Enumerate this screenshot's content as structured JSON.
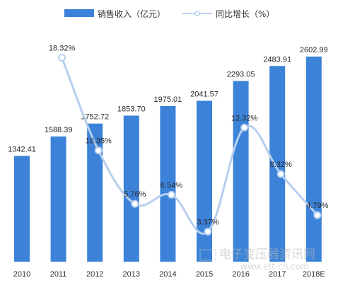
{
  "chart_data": {
    "type": "bar",
    "categories": [
      "2010",
      "2011",
      "2012",
      "2013",
      "2014",
      "2015",
      "2016",
      "2017",
      "2018E"
    ],
    "series": [
      {
        "name": "销售收入（亿元）",
        "kind": "bar",
        "values": [
          1342.41,
          1588.39,
          1752.72,
          1853.7,
          1975.01,
          2041.57,
          2293.05,
          2483.91,
          2602.99
        ],
        "labels": [
          "1342.41",
          "1588.39",
          "1752.72",
          "1853.70",
          "1975.01",
          "2041.57",
          "2293.05",
          "2483.91",
          "2602.99"
        ]
      },
      {
        "name": "同比增长（%）",
        "kind": "line",
        "x": [
          "2011",
          "2012",
          "2013",
          "2014",
          "2015",
          "2016",
          "2017",
          "2018E"
        ],
        "values": [
          18.32,
          10.35,
          5.76,
          6.54,
          3.37,
          12.32,
          8.32,
          4.79
        ],
        "labels": [
          "18.32%",
          "10.35%",
          "5.76%",
          "6.54%",
          "3.37%",
          "12.32%",
          "8.32%",
          "4.79%"
        ]
      }
    ],
    "bar_ylim": [
      0,
      2750
    ],
    "line_ylim": [
      0,
      20
    ],
    "legend_position": "top",
    "grid": false,
    "colors": {
      "bar": "#3b82d8",
      "line": "#b7cfee",
      "marker": "#ffffff",
      "marker_edge": "#b7cfee"
    }
  },
  "watermark": {
    "site_name": "电子变压器资讯网",
    "url": "www.ett-cn.com"
  }
}
